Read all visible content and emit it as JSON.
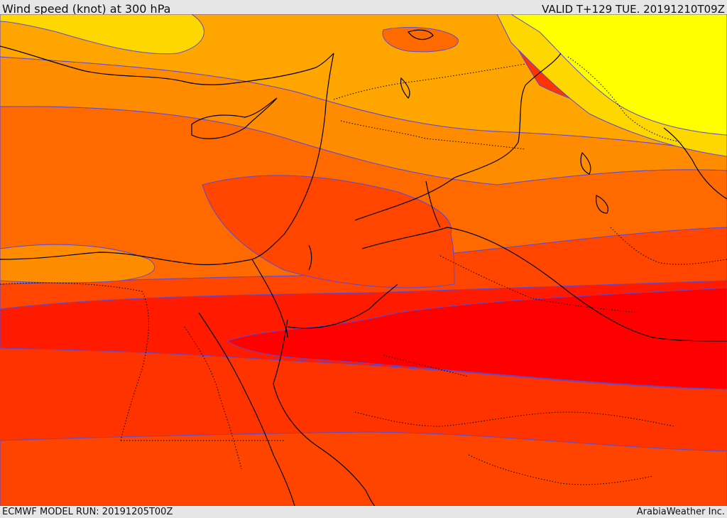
{
  "header": {
    "title": "Wind speed (knot) at 300 hPa",
    "valid": "VALID T+129 TUE. 20191210T09Z"
  },
  "footer": {
    "model_run": "ECMWF MODEL RUN: 20191205T00Z",
    "credit": "ArabiaWeather Inc."
  },
  "map": {
    "colors": {
      "band_yellow": "#ffff00",
      "band_gold": "#ffd700",
      "band_lightorange": "#ffa500",
      "band_orange": "#ff8c00",
      "band_darkorange": "#ff6a00",
      "band_orangered": "#ff4500",
      "band_red1": "#ff2a00",
      "band_red": "#ff0000",
      "contour_line": "#5a4bd6",
      "border_line": "#000000"
    }
  }
}
